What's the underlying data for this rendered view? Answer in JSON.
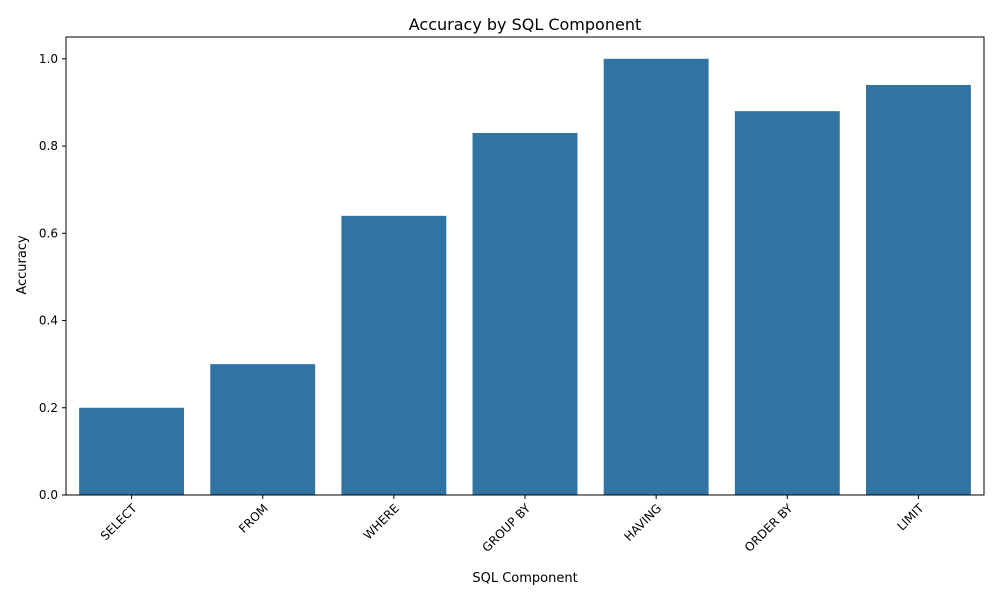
{
  "chart_data": {
    "type": "bar",
    "title": "Accuracy by SQL Component",
    "xlabel": "SQL Component",
    "ylabel": "Accuracy",
    "categories": [
      "SELECT",
      "FROM",
      "WHERE",
      "GROUP BY",
      "HAVING",
      "ORDER BY",
      "LIMIT"
    ],
    "values": [
      0.2,
      0.3,
      0.64,
      0.83,
      1.0,
      0.88,
      0.94
    ],
    "ylim": [
      0,
      1.05
    ],
    "yticks": [
      0.0,
      0.2,
      0.4,
      0.6,
      0.8,
      1.0
    ],
    "ytick_labels": [
      "0.0",
      "0.2",
      "0.4",
      "0.6",
      "0.8",
      "1.0"
    ],
    "x_tick_rotation_deg": 45,
    "bar_color": "#3274a1",
    "grid": false,
    "legend": "none"
  }
}
